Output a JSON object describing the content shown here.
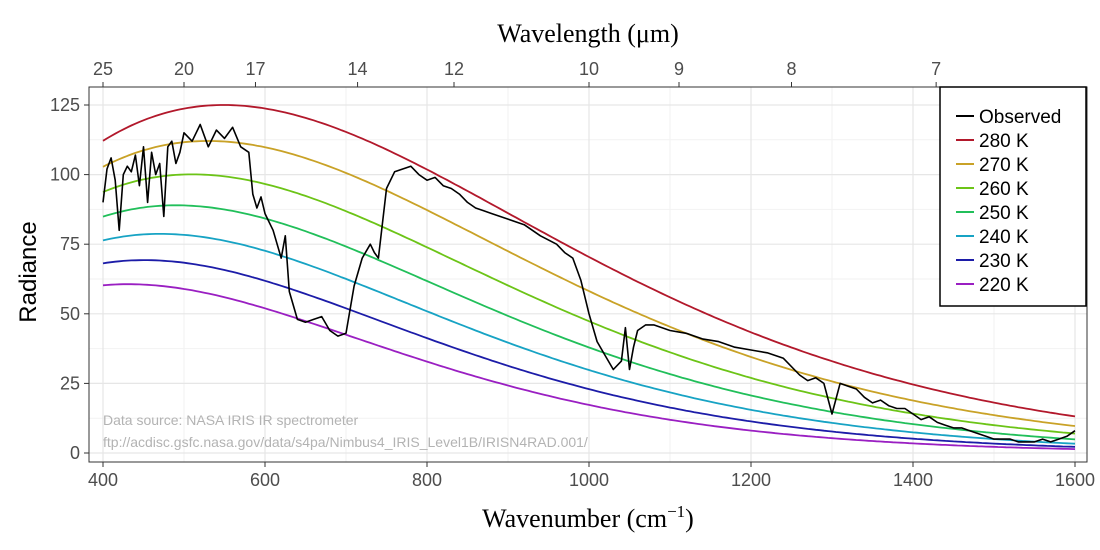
{
  "chart_data": {
    "type": "line",
    "xlabel": "Wavenumber (cm",
    "xlabel_sup": "−1",
    "xlabel_close": ")",
    "ylabel": "Radiance",
    "toplabel": "Wavelength (μm)",
    "xlim": [
      400,
      1600
    ],
    "ylim": [
      0,
      125
    ],
    "x_ticks": [
      400,
      600,
      800,
      1000,
      1200,
      1400,
      1600
    ],
    "y_ticks": [
      0,
      25,
      50,
      75,
      100,
      125
    ],
    "top_ticks": [
      {
        "label": "25",
        "wavelength": 25
      },
      {
        "label": "20",
        "wavelength": 20
      },
      {
        "label": "17",
        "wavelength": 17
      },
      {
        "label": "14",
        "wavelength": 14
      },
      {
        "label": "12",
        "wavelength": 12
      },
      {
        "label": "10",
        "wavelength": 10
      },
      {
        "label": "9",
        "wavelength": 9
      },
      {
        "label": "8",
        "wavelength": 8
      },
      {
        "label": "7",
        "wavelength": 7
      }
    ],
    "grid": true,
    "legend_position": "top-right",
    "annotations": [
      "Data source: NASA IRIS IR spectrometer",
      "ftp://acdisc.gsfc.nasa.gov/data/s4pa/Nimbus4_IRIS_Level1B/IRISN4RAD.001/"
    ],
    "series": [
      {
        "name": "Observed",
        "color": "#000000",
        "kind": "observed",
        "x": [
          400,
          405,
          410,
          415,
          420,
          425,
          430,
          435,
          440,
          445,
          450,
          455,
          460,
          465,
          470,
          475,
          480,
          485,
          490,
          495,
          500,
          510,
          520,
          530,
          540,
          550,
          560,
          570,
          580,
          585,
          590,
          595,
          600,
          610,
          620,
          625,
          630,
          640,
          650,
          660,
          670,
          680,
          690,
          700,
          710,
          720,
          730,
          735,
          740,
          750,
          760,
          770,
          780,
          790,
          800,
          810,
          820,
          830,
          840,
          850,
          860,
          870,
          880,
          890,
          900,
          920,
          940,
          960,
          970,
          980,
          990,
          1000,
          1010,
          1020,
          1030,
          1040,
          1045,
          1050,
          1055,
          1060,
          1070,
          1080,
          1100,
          1120,
          1140,
          1160,
          1180,
          1200,
          1220,
          1240,
          1260,
          1270,
          1280,
          1290,
          1300,
          1310,
          1320,
          1330,
          1340,
          1350,
          1360,
          1370,
          1380,
          1390,
          1400,
          1410,
          1420,
          1430,
          1440,
          1450,
          1460,
          1470,
          1480,
          1490,
          1500,
          1510,
          1520,
          1530,
          1540,
          1550,
          1560,
          1570,
          1580,
          1590,
          1600
        ],
        "y": [
          90,
          102,
          106,
          98,
          80,
          100,
          103,
          101,
          107,
          96,
          110,
          90,
          108,
          100,
          104,
          85,
          110,
          112,
          104,
          108,
          115,
          112,
          118,
          110,
          116,
          113,
          117,
          110,
          108,
          93,
          88,
          92,
          86,
          80,
          70,
          78,
          58,
          48,
          47,
          48,
          49,
          44,
          42,
          43,
          60,
          70,
          75,
          72,
          70,
          95,
          101,
          102,
          103,
          100,
          98,
          99,
          96,
          95,
          93,
          90,
          88,
          87,
          86,
          85,
          84,
          82,
          78,
          75,
          72,
          70,
          62,
          50,
          40,
          35,
          30,
          33,
          45,
          30,
          38,
          44,
          46,
          46,
          44,
          43,
          41,
          40,
          38,
          37,
          36,
          34,
          28,
          26,
          27,
          25,
          14,
          25,
          24,
          23,
          20,
          18,
          19,
          17,
          16,
          16,
          14,
          12,
          13,
          11,
          10,
          9,
          9,
          8,
          7,
          6,
          5,
          5,
          5,
          4,
          4,
          4,
          5,
          4,
          5,
          6,
          8
        ]
      },
      {
        "name": "280 K",
        "color": "#b2182b",
        "kind": "planck",
        "temperature": 280
      },
      {
        "name": "270 K",
        "color": "#c9a227",
        "kind": "planck",
        "temperature": 270
      },
      {
        "name": "260 K",
        "color": "#6cc417",
        "kind": "planck",
        "temperature": 260
      },
      {
        "name": "250 K",
        "color": "#21bf5a",
        "kind": "planck",
        "temperature": 250
      },
      {
        "name": "240 K",
        "color": "#17a3c4",
        "kind": "planck",
        "temperature": 240
      },
      {
        "name": "230 K",
        "color": "#1c1ca8",
        "kind": "planck",
        "temperature": 230
      },
      {
        "name": "220 K",
        "color": "#9a1fc2",
        "kind": "planck",
        "temperature": 220
      }
    ]
  }
}
